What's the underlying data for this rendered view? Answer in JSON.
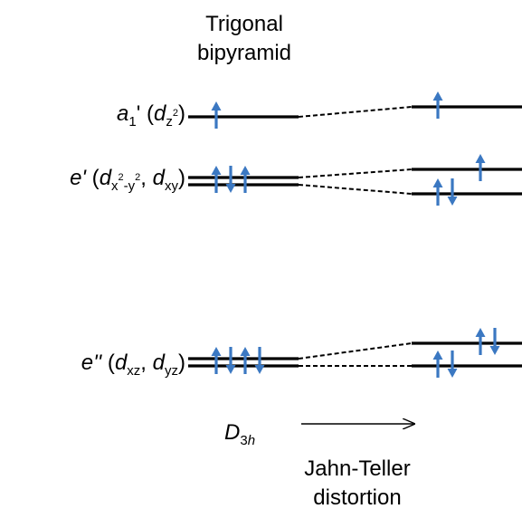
{
  "header": {
    "line1": "Trigonal",
    "line2": "bipyramid"
  },
  "labels": {
    "a1": {
      "sym": "a",
      "sym_sub": "1",
      "prime": "'",
      "open": " (",
      "orb": "d",
      "orb_sub": "z",
      "orb_sup": "2",
      "close": ")"
    },
    "e_prime": {
      "sym": "e'",
      "open": " (",
      "orb1": "d",
      "orb1_sub": "x",
      "orb1_sup1": "2",
      "orb1_dash": "-y",
      "orb1_sup2": "2",
      "sep": ", ",
      "orb2": "d",
      "orb2_sub": "xy",
      "close": ")"
    },
    "e_dprime": {
      "sym": "e''",
      "open": " (",
      "orb1": "d",
      "orb1_sub": "xz",
      "sep": ", ",
      "orb2": "d",
      "orb2_sub": "yz",
      "close": ")"
    }
  },
  "footer": {
    "group_main": "D",
    "group_sub": "3",
    "group_sub_italic": "h",
    "process_line1": "Jahn-Teller",
    "process_line2": "distortion"
  },
  "colors": {
    "line": "#000000",
    "electron": "#3b78c2"
  },
  "electrons": {
    "a1_left": [
      "up"
    ],
    "e_prime_left": [
      "up",
      "down",
      "up"
    ],
    "e_dprime_left": [
      "up",
      "down",
      "up",
      "down"
    ],
    "a1_right": [
      "up"
    ],
    "e_prime_right_upper": [
      "up"
    ],
    "e_prime_right_lower": [
      "up",
      "down"
    ],
    "e_dprime_right_upper": [
      "up",
      "down"
    ],
    "e_dprime_right_lower": [
      "up",
      "down"
    ]
  }
}
